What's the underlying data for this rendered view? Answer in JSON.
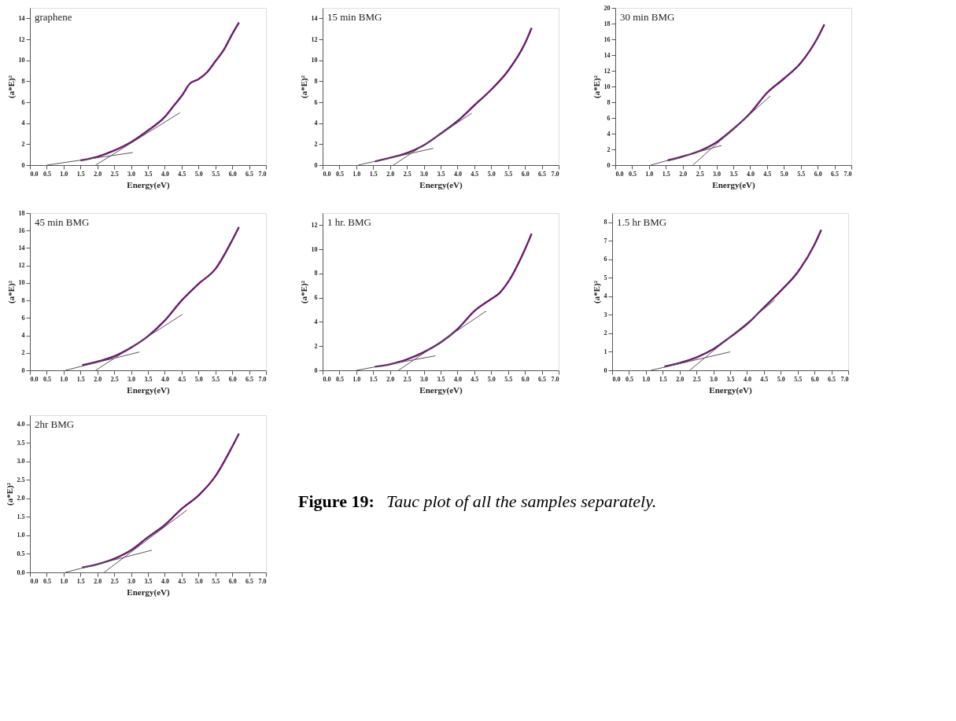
{
  "chart_data": [
    {
      "type": "line",
      "title": "graphene",
      "xlabel": "Energy(eV)",
      "ylabel": "(a*E)²",
      "xlim": [
        0,
        7
      ],
      "ylim": [
        0,
        15
      ],
      "yticks": [
        0,
        2,
        4,
        6,
        8,
        10,
        12,
        14
      ],
      "xticks": [
        {
          "value": 0,
          "label": "0.0"
        },
        0.5,
        {
          "value": 1,
          "label": "1.0"
        },
        1.5,
        {
          "value": 2,
          "label": "2.0"
        },
        2.5,
        {
          "value": 3,
          "label": "3.0"
        },
        3.5,
        {
          "value": 4,
          "label": "4.0"
        },
        4.5,
        {
          "value": 5,
          "label": "5.0"
        },
        5.5,
        {
          "value": 6,
          "label": "6.0"
        },
        6.5,
        {
          "value": 7,
          "label": "7.0"
        }
      ],
      "grid": false,
      "series": [
        {
          "color": "#6a1b6e",
          "x": [
            1.5,
            2.0,
            2.5,
            3.0,
            3.5,
            4.0,
            4.25,
            4.5,
            4.75,
            5.0,
            5.25,
            5.5,
            5.75,
            6.0,
            6.2
          ],
          "values": [
            0.45,
            0.8,
            1.4,
            2.2,
            3.3,
            4.6,
            5.6,
            6.6,
            7.8,
            8.2,
            8.85,
            9.9,
            11.0,
            12.5,
            13.6
          ]
        },
        {
          "type": "line",
          "color": "#555555",
          "x": [
            0.5,
            3.05
          ],
          "values": [
            0,
            1.2
          ]
        },
        {
          "type": "line",
          "color": "#555555",
          "x": [
            1.95,
            4.45
          ],
          "values": [
            0,
            5.0
          ]
        }
      ]
    },
    {
      "type": "line",
      "title": "15 min BMG",
      "xlabel": "Energy(eV)",
      "ylabel": "(a*E)²",
      "xlim": [
        0,
        7
      ],
      "ylim": [
        0,
        15
      ],
      "yticks": [
        0,
        2,
        4,
        6,
        8,
        10,
        12,
        14
      ],
      "xticks": [
        {
          "value": 0,
          "label": "0.0"
        },
        0.5,
        {
          "value": 1,
          "label": "1.0"
        },
        1.5,
        {
          "value": 2,
          "label": "2.0"
        },
        2.5,
        {
          "value": 3,
          "label": "3.0"
        },
        3.5,
        {
          "value": 4,
          "label": "4.0"
        },
        4.5,
        {
          "value": 5,
          "label": "5.0"
        },
        5.5,
        {
          "value": 6,
          "label": "6.0"
        },
        6.5,
        {
          "value": 7,
          "label": "7.0"
        }
      ],
      "grid": false,
      "series": [
        {
          "color": "#6a1b6e",
          "x": [
            1.55,
            2.0,
            2.5,
            3.0,
            3.5,
            4.0,
            4.5,
            5.0,
            5.5,
            6.0,
            6.2
          ],
          "values": [
            0.35,
            0.7,
            1.15,
            1.9,
            3.0,
            4.2,
            5.7,
            7.2,
            9.0,
            11.6,
            13.1
          ]
        },
        {
          "type": "line",
          "color": "#555555",
          "x": [
            1.05,
            3.28
          ],
          "values": [
            0,
            1.6
          ]
        },
        {
          "type": "line",
          "color": "#555555",
          "x": [
            2.1,
            4.42
          ],
          "values": [
            0,
            4.95
          ]
        }
      ]
    },
    {
      "type": "line",
      "title": "30 min BMG",
      "xlabel": "Energy(eV)",
      "ylabel": "(a*E)²",
      "xlim": [
        0,
        7
      ],
      "ylim": [
        0,
        20
      ],
      "yticks": [
        0,
        2,
        4,
        6,
        8,
        10,
        12,
        14,
        16,
        18,
        20
      ],
      "xticks": [
        {
          "value": 0,
          "label": "0.0"
        },
        0.5,
        {
          "value": 1,
          "label": "1.0"
        },
        1.5,
        {
          "value": 2,
          "label": "2.0"
        },
        2.5,
        {
          "value": 3,
          "label": "3.0"
        },
        3.5,
        {
          "value": 4,
          "label": "4.0"
        },
        4.5,
        {
          "value": 5,
          "label": "5.0"
        },
        5.5,
        {
          "value": 6,
          "label": "6.0"
        },
        6.5,
        {
          "value": 7,
          "label": "7.0"
        }
      ],
      "grid": false,
      "series": [
        {
          "color": "#6a1b6e",
          "x": [
            1.55,
            2.0,
            2.5,
            3.0,
            3.5,
            4.0,
            4.5,
            5.0,
            5.5,
            6.0,
            6.2
          ],
          "values": [
            0.6,
            1.1,
            1.8,
            2.9,
            4.6,
            6.6,
            9.2,
            11.0,
            13.0,
            16.2,
            17.9
          ]
        },
        {
          "type": "line",
          "color": "#555555",
          "x": [
            1.05,
            3.15
          ],
          "values": [
            0,
            2.5
          ]
        },
        {
          "type": "line",
          "color": "#555555",
          "x": [
            2.3,
            4.6
          ],
          "values": [
            0,
            8.8
          ]
        }
      ]
    },
    {
      "type": "line",
      "title": "45 min BMG",
      "xlabel": "Energy(eV)",
      "ylabel": "(a*E)²",
      "xlim": [
        0,
        7
      ],
      "ylim": [
        0,
        18
      ],
      "yticks": [
        0,
        2,
        4,
        6,
        8,
        10,
        12,
        14,
        16,
        18
      ],
      "xticks": [
        {
          "value": 0,
          "label": "0.0"
        },
        0.5,
        {
          "value": 1,
          "label": "1.0"
        },
        1.5,
        {
          "value": 2,
          "label": "2.0"
        },
        2.5,
        {
          "value": 3,
          "label": "3.0"
        },
        3.5,
        {
          "value": 4,
          "label": "4.0"
        },
        4.5,
        {
          "value": 5,
          "label": "5.0"
        },
        5.5,
        {
          "value": 6,
          "label": "6.0"
        },
        6.5,
        {
          "value": 7,
          "label": "7.0"
        }
      ],
      "grid": false,
      "series": [
        {
          "color": "#6a1b6e",
          "x": [
            1.55,
            2.0,
            2.5,
            3.0,
            3.5,
            4.0,
            4.5,
            5.0,
            5.5,
            6.0,
            6.2
          ],
          "values": [
            0.6,
            1.0,
            1.6,
            2.6,
            3.9,
            5.7,
            8.0,
            9.9,
            11.6,
            14.9,
            16.4
          ]
        },
        {
          "type": "line",
          "color": "#555555",
          "x": [
            1.05,
            3.25
          ],
          "values": [
            0,
            2.1
          ]
        },
        {
          "type": "line",
          "color": "#555555",
          "x": [
            1.95,
            4.52
          ],
          "values": [
            0,
            6.4
          ]
        }
      ]
    },
    {
      "type": "line",
      "title": "1 hr. BMG",
      "xlabel": "Energy(eV)",
      "ylabel": "(a*E)²",
      "xlim": [
        0,
        7
      ],
      "ylim": [
        0,
        13
      ],
      "yticks": [
        0,
        2,
        4,
        6,
        8,
        10,
        12
      ],
      "xticks": [
        {
          "value": 0,
          "label": "0.0"
        },
        0.5,
        {
          "value": 1,
          "label": "1.0"
        },
        1.5,
        {
          "value": 2,
          "label": "2.0"
        },
        2.5,
        {
          "value": 3,
          "label": "3.0"
        },
        3.5,
        {
          "value": 4,
          "label": "4.0"
        },
        4.5,
        {
          "value": 5,
          "label": "5.0"
        },
        5.5,
        {
          "value": 6,
          "label": "6.0"
        },
        6.5,
        {
          "value": 7,
          "label": "7.0"
        }
      ],
      "grid": false,
      "series": [
        {
          "color": "#6a1b6e",
          "x": [
            1.55,
            2.0,
            2.5,
            3.0,
            3.5,
            4.0,
            4.5,
            5.0,
            5.25,
            5.5,
            6.0,
            6.2
          ],
          "values": [
            0.3,
            0.5,
            0.9,
            1.5,
            2.3,
            3.4,
            4.9,
            5.9,
            6.4,
            7.3,
            10.0,
            11.3
          ]
        },
        {
          "type": "line",
          "color": "#555555",
          "x": [
            1.0,
            3.35
          ],
          "values": [
            0,
            1.2
          ]
        },
        {
          "type": "line",
          "color": "#555555",
          "x": [
            2.25,
            4.85
          ],
          "values": [
            0,
            4.9
          ]
        }
      ]
    },
    {
      "type": "line",
      "title": "1.5 hr BMG",
      "xlabel": "Energy(eV)",
      "ylabel": "(a*E)²",
      "xlim": [
        0,
        7
      ],
      "ylim": [
        0,
        8.5
      ],
      "yticks": [
        0,
        1,
        2,
        3,
        4,
        5,
        6,
        7,
        8
      ],
      "xticks": [
        {
          "value": 0,
          "label": "0.0"
        },
        0.5,
        {
          "value": 1,
          "label": "1.0"
        },
        1.5,
        {
          "value": 2,
          "label": "2.0"
        },
        2.5,
        {
          "value": 3,
          "label": "3.0"
        },
        3.5,
        {
          "value": 4,
          "label": "4.0"
        },
        4.5,
        {
          "value": 5,
          "label": "5.0"
        },
        5.5,
        {
          "value": 6,
          "label": "6.0"
        },
        6.5,
        {
          "value": 7,
          "label": "7.0"
        }
      ],
      "grid": false,
      "series": [
        {
          "color": "#6a1b6e",
          "x": [
            1.55,
            2.0,
            2.5,
            3.0,
            3.5,
            4.0,
            4.5,
            5.0,
            5.5,
            6.0,
            6.2
          ],
          "values": [
            0.2,
            0.4,
            0.7,
            1.15,
            1.8,
            2.5,
            3.4,
            4.3,
            5.3,
            6.8,
            7.6
          ]
        },
        {
          "type": "line",
          "color": "#555555",
          "x": [
            1.15,
            3.5
          ],
          "values": [
            0,
            1.0
          ]
        },
        {
          "type": "line",
          "color": "#555555",
          "x": [
            2.3,
            4.82
          ],
          "values": [
            0,
            3.8
          ]
        }
      ]
    },
    {
      "type": "line",
      "title": "2hr BMG",
      "xlabel": "Energy(eV)",
      "ylabel": "(a*E)²",
      "xlim": [
        0,
        7
      ],
      "ylim": [
        0,
        4.25
      ],
      "yticks": [
        {
          "value": 0,
          "label": "0.0"
        },
        0.5,
        {
          "value": 1,
          "label": "1.0"
        },
        1.5,
        {
          "value": 2,
          "label": "2.0"
        },
        2.5,
        {
          "value": 3,
          "label": "3.0"
        },
        3.5,
        {
          "value": 4,
          "label": "4.0"
        }
      ],
      "xticks": [
        {
          "value": 0,
          "label": "0.0"
        },
        0.5,
        {
          "value": 1,
          "label": "1.0"
        },
        1.5,
        {
          "value": 2,
          "label": "2.0"
        },
        2.5,
        {
          "value": 3,
          "label": "3.0"
        },
        3.5,
        {
          "value": 4,
          "label": "4.0"
        },
        4.5,
        {
          "value": 5,
          "label": "5.0"
        },
        5.5,
        {
          "value": 6,
          "label": "6.0"
        },
        6.5,
        {
          "value": 7,
          "label": "7.0"
        }
      ],
      "grid": false,
      "series": [
        {
          "color": "#6a1b6e",
          "x": [
            1.55,
            2.0,
            2.5,
            3.0,
            3.5,
            4.0,
            4.5,
            5.0,
            5.5,
            6.0,
            6.2
          ],
          "values": [
            0.13,
            0.22,
            0.37,
            0.6,
            0.95,
            1.28,
            1.72,
            2.08,
            2.6,
            3.4,
            3.75
          ]
        },
        {
          "type": "line",
          "color": "#555555",
          "x": [
            1.05,
            3.62
          ],
          "values": [
            0,
            0.6
          ]
        },
        {
          "type": "line",
          "color": "#555555",
          "x": [
            2.2,
            4.65
          ],
          "values": [
            0,
            1.68
          ]
        }
      ]
    },
    {
      "type": "other",
      "annotations": [
        "Figure 19:",
        "Tauc plot of all the samples separately."
      ]
    }
  ]
}
